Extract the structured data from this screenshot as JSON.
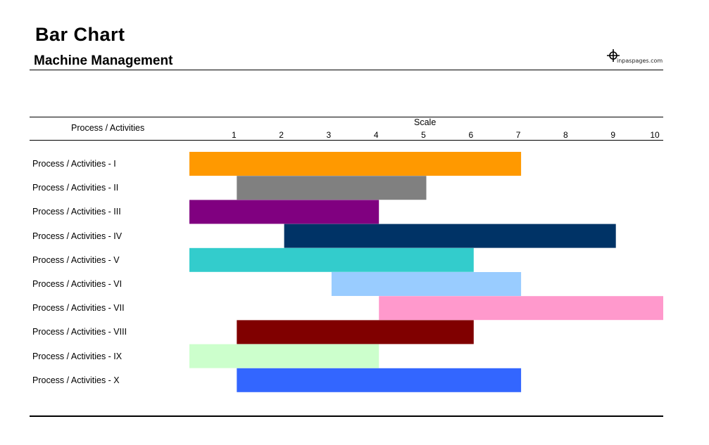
{
  "header": {
    "title": "Bar Chart",
    "subtitle": "Machine Management",
    "logo_text": "inpaspages.com"
  },
  "chart_data": {
    "type": "bar",
    "orientation": "horizontal-gantt",
    "category_header": "Process / Activities",
    "xlabel": "Scale",
    "xlim": [
      0,
      10
    ],
    "x_ticks": [
      "1",
      "2",
      "3",
      "4",
      "5",
      "6",
      "7",
      "8",
      "9",
      "10"
    ],
    "grid": false,
    "bars": [
      {
        "label": "Process / Activities - I",
        "start": 0,
        "end": 7,
        "color": "#FF9900"
      },
      {
        "label": "Process / Activities - II",
        "start": 1,
        "end": 5,
        "color": "#808080"
      },
      {
        "label": "Process / Activities - III",
        "start": 0,
        "end": 4,
        "color": "#800080"
      },
      {
        "label": "Process / Activities - IV",
        "start": 2,
        "end": 9,
        "color": "#003366"
      },
      {
        "label": "Process / Activities - V",
        "start": 0,
        "end": 6,
        "color": "#33CCCC"
      },
      {
        "label": "Process / Activities - VI",
        "start": 3,
        "end": 7,
        "color": "#99CCFF"
      },
      {
        "label": "Process / Activities - VII",
        "start": 4,
        "end": 10,
        "color": "#FF99CC"
      },
      {
        "label": "Process / Activities - VIII",
        "start": 1,
        "end": 6,
        "color": "#800000"
      },
      {
        "label": "Process / Activities - IX",
        "start": 0,
        "end": 4,
        "color": "#CCFFCC"
      },
      {
        "label": "Process / Activities - X",
        "start": 1,
        "end": 7,
        "color": "#3366FF"
      }
    ]
  }
}
